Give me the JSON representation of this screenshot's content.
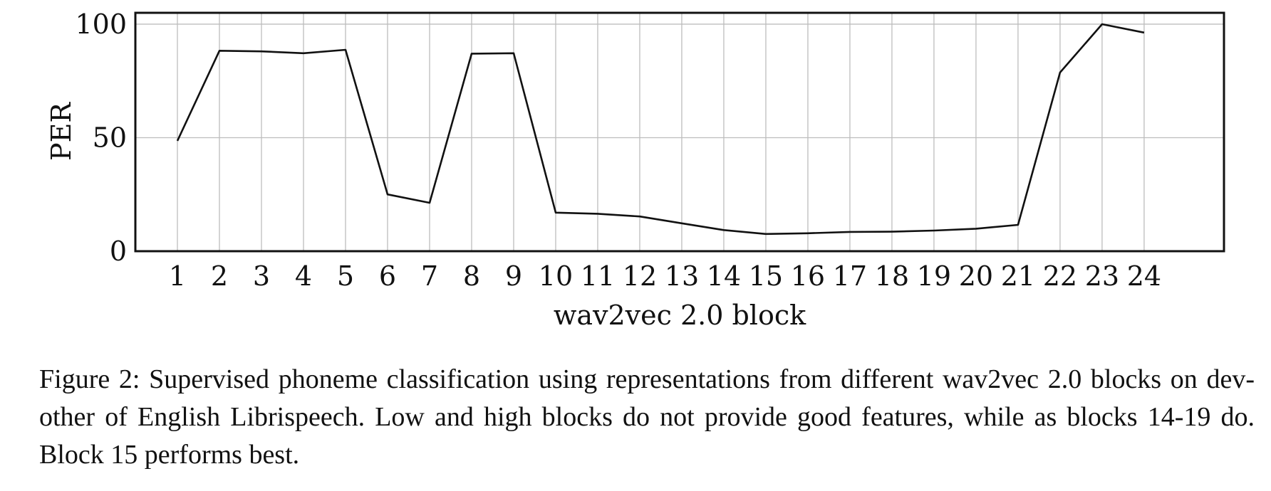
{
  "chart_data": {
    "type": "line",
    "title": "",
    "xlabel": "wav2vec 2.0 block",
    "ylabel": "PER",
    "x": [
      1,
      2,
      3,
      4,
      5,
      6,
      7,
      8,
      9,
      10,
      11,
      12,
      13,
      14,
      15,
      16,
      17,
      18,
      19,
      20,
      21,
      22,
      23,
      24
    ],
    "x_tick_labels": [
      "1",
      "2",
      "3",
      "4",
      "5",
      "6",
      "7",
      "8",
      "9",
      "10",
      "11",
      "12",
      "13",
      "14",
      "15",
      "16",
      "17",
      "18",
      "19",
      "20",
      "21",
      "22",
      "23",
      "24"
    ],
    "y_ticks": [
      0,
      50,
      100
    ],
    "y_tick_labels": [
      "0",
      "50",
      "100"
    ],
    "series": [
      {
        "values": [
          48.6,
          88.3,
          88.0,
          87.2,
          88.7,
          25.0,
          21.3,
          87.0,
          87.2,
          17.0,
          16.5,
          15.3,
          12.3,
          9.3,
          7.6,
          7.9,
          8.5,
          8.6,
          9.1,
          9.9,
          11.6,
          78.7,
          100.0,
          96.3
        ],
        "color": "#111111"
      }
    ],
    "xlim": [
      0,
      25.9
    ],
    "ylim": [
      0,
      105
    ],
    "grid": true,
    "legend": "none"
  },
  "caption": "Figure 2: Supervised phoneme classification using representations from different wav2vec 2.0 blocks on dev-other of English Librispeech. Low and high blocks do not provide good features, while as blocks 14-19 do. Block 15 performs best."
}
